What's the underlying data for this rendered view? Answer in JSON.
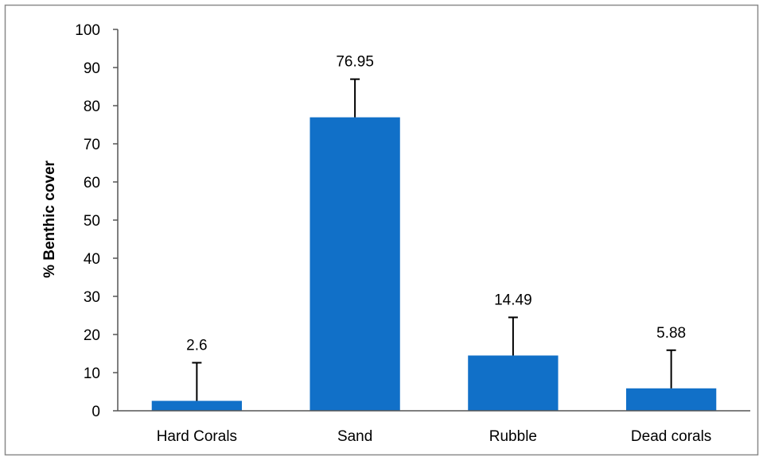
{
  "chart_data": {
    "type": "bar",
    "categories": [
      "Hard Corals",
      "Sand",
      "Rubble",
      "Dead corals"
    ],
    "values": [
      2.6,
      76.95,
      14.49,
      5.88
    ],
    "error_bars": [
      10,
      10,
      10,
      10
    ],
    "data_labels": [
      "2.6",
      "76.95",
      "14.49",
      "5.88"
    ],
    "ylabel": "% Benthic cover",
    "ylim": [
      0,
      100
    ],
    "yticks": [
      0,
      10,
      20,
      30,
      40,
      50,
      60,
      70,
      80,
      90,
      100
    ],
    "bar_color": "#1170C8",
    "grid": false,
    "legend": "none"
  }
}
